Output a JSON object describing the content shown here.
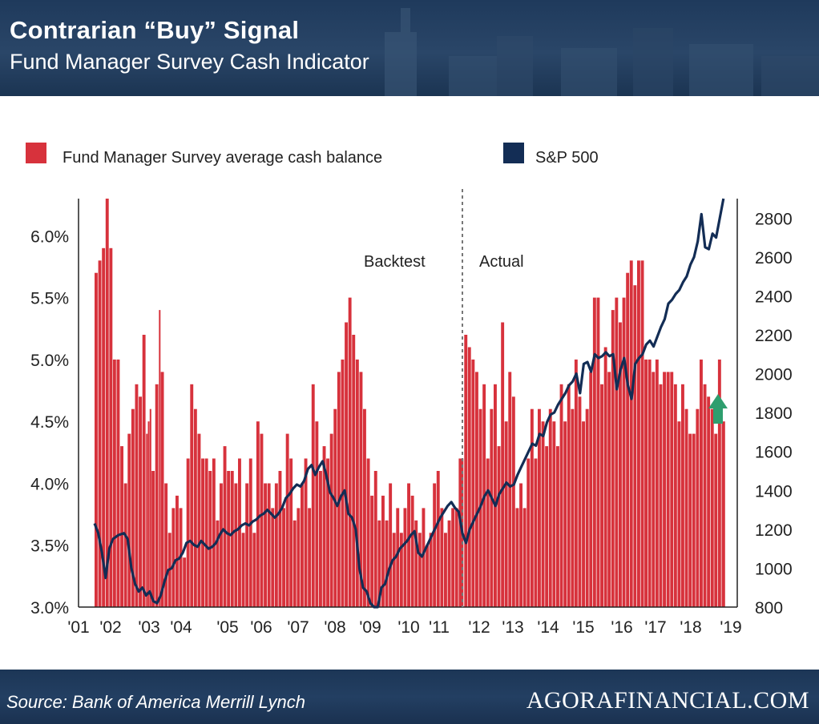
{
  "header": {
    "title": "Contrarian “Buy” Signal",
    "subtitle": "Fund Manager Survey Cash Indicator"
  },
  "footer": {
    "source": "Source: Bank of America Merrill Lynch",
    "brand": "AGORAFINANCIAL.COM"
  },
  "colors": {
    "bar": "#d7323c",
    "line": "#132d55",
    "arrow": "#2e9e6e",
    "header_bg": "#22405f"
  },
  "chart_data": {
    "type": "bar",
    "legend": [
      {
        "label": "Fund Manager Survey average cash balance",
        "color": "#d7323c"
      },
      {
        "label": "S&P 500",
        "color": "#132d55"
      }
    ],
    "annotations": [
      "Backtest",
      "Actual"
    ],
    "x_tick_labels": [
      "'01",
      "'02",
      "'03",
      "'04",
      "'05",
      "'06",
      "'07",
      "'08",
      "'09",
      "'10",
      "'11",
      "'12",
      "'13",
      "'14",
      "'15",
      "'16",
      "'17",
      "'18",
      "'19"
    ],
    "x_tick_years": [
      2001,
      2001.75,
      2002.9,
      2003.75,
      2004.9,
      2005.75,
      2006.7,
      2007.7,
      2008.75,
      2009.8,
      2010.5,
      2011.8,
      2012.75,
      2013.75,
      2014.5,
      2015.5,
      2016.4,
      2017.4,
      2018.6
    ],
    "x_range": [
      2001,
      2018.6
    ],
    "y_left": {
      "range": [
        3.0,
        6.3
      ],
      "ticks": [
        3.0,
        3.5,
        4.0,
        4.5,
        5.0,
        5.5,
        6.0
      ],
      "tick_labels": [
        "3.0%",
        "3.5%",
        "4.0%",
        "4.5%",
        "5.0%",
        "5.5%",
        "6.0%"
      ]
    },
    "y_right": {
      "range": [
        800,
        2900
      ],
      "ticks": [
        800,
        1000,
        1200,
        1400,
        1600,
        1800,
        2000,
        2200,
        2400,
        2600,
        2800
      ],
      "tick_labels": [
        "800",
        "1000",
        "1200",
        "1400",
        "1600",
        "1800",
        "2000",
        "2200",
        "2400",
        "2600",
        "2800"
      ]
    },
    "divider_year": 2011.5,
    "cash_balance": [
      [
        2001.5,
        5.7
      ],
      [
        2001.6,
        5.8
      ],
      [
        2001.7,
        5.9
      ],
      [
        2001.8,
        6.3
      ],
      [
        2001.9,
        5.9
      ],
      [
        2002.0,
        5.0
      ],
      [
        2002.1,
        5.0
      ],
      [
        2002.2,
        4.3
      ],
      [
        2002.3,
        4.0
      ],
      [
        2002.4,
        4.4
      ],
      [
        2002.5,
        4.6
      ],
      [
        2002.6,
        4.8
      ],
      [
        2002.7,
        4.7
      ],
      [
        2002.8,
        5.2
      ],
      [
        2002.9,
        4.4
      ],
      [
        2002.95,
        4.5
      ],
      [
        2003.0,
        4.6
      ],
      [
        2003.05,
        4.1
      ],
      [
        2003.15,
        4.8
      ],
      [
        2003.25,
        5.4
      ],
      [
        2003.3,
        4.9
      ],
      [
        2003.4,
        4.0
      ],
      [
        2003.5,
        3.6
      ],
      [
        2003.6,
        3.8
      ],
      [
        2003.7,
        3.9
      ],
      [
        2003.8,
        3.8
      ],
      [
        2003.9,
        3.4
      ],
      [
        2004.0,
        4.2
      ],
      [
        2004.1,
        4.8
      ],
      [
        2004.2,
        4.6
      ],
      [
        2004.3,
        4.4
      ],
      [
        2004.4,
        4.2
      ],
      [
        2004.5,
        4.2
      ],
      [
        2004.6,
        4.1
      ],
      [
        2004.7,
        4.2
      ],
      [
        2004.8,
        3.7
      ],
      [
        2004.9,
        4.0
      ],
      [
        2005.0,
        4.3
      ],
      [
        2005.1,
        4.1
      ],
      [
        2005.2,
        4.1
      ],
      [
        2005.3,
        4.0
      ],
      [
        2005.4,
        4.2
      ],
      [
        2005.5,
        3.6
      ],
      [
        2005.6,
        4.0
      ],
      [
        2005.7,
        4.2
      ],
      [
        2005.8,
        3.6
      ],
      [
        2005.9,
        4.5
      ],
      [
        2006.0,
        4.4
      ],
      [
        2006.1,
        4.0
      ],
      [
        2006.2,
        4.0
      ],
      [
        2006.3,
        3.8
      ],
      [
        2006.4,
        4.0
      ],
      [
        2006.5,
        4.1
      ],
      [
        2006.6,
        3.8
      ],
      [
        2006.7,
        4.4
      ],
      [
        2006.8,
        4.2
      ],
      [
        2006.9,
        3.7
      ],
      [
        2007.0,
        3.8
      ],
      [
        2007.1,
        4.0
      ],
      [
        2007.2,
        4.2
      ],
      [
        2007.3,
        3.8
      ],
      [
        2007.4,
        4.8
      ],
      [
        2007.5,
        4.5
      ],
      [
        2007.6,
        4.1
      ],
      [
        2007.7,
        4.3
      ],
      [
        2007.8,
        4.2
      ],
      [
        2007.9,
        4.4
      ],
      [
        2008.0,
        4.6
      ],
      [
        2008.1,
        4.9
      ],
      [
        2008.2,
        5.0
      ],
      [
        2008.3,
        5.3
      ],
      [
        2008.4,
        5.5
      ],
      [
        2008.5,
        5.2
      ],
      [
        2008.6,
        5.0
      ],
      [
        2008.7,
        4.9
      ],
      [
        2008.8,
        4.6
      ],
      [
        2008.9,
        4.2
      ],
      [
        2009.0,
        3.9
      ],
      [
        2009.1,
        4.1
      ],
      [
        2009.2,
        3.7
      ],
      [
        2009.3,
        3.9
      ],
      [
        2009.4,
        3.7
      ],
      [
        2009.5,
        4.0
      ],
      [
        2009.6,
        3.6
      ],
      [
        2009.7,
        3.8
      ],
      [
        2009.8,
        3.6
      ],
      [
        2009.9,
        3.8
      ],
      [
        2010.0,
        4.0
      ],
      [
        2010.1,
        3.9
      ],
      [
        2010.2,
        3.7
      ],
      [
        2010.3,
        3.6
      ],
      [
        2010.4,
        3.8
      ],
      [
        2010.5,
        3.5
      ],
      [
        2010.6,
        3.6
      ],
      [
        2010.7,
        4.0
      ],
      [
        2010.8,
        4.1
      ],
      [
        2010.9,
        3.8
      ],
      [
        2011.0,
        3.6
      ],
      [
        2011.1,
        3.7
      ],
      [
        2011.2,
        3.8
      ],
      [
        2011.3,
        3.8
      ],
      [
        2011.4,
        4.2
      ],
      [
        2011.55,
        5.2
      ],
      [
        2011.65,
        5.1
      ],
      [
        2011.75,
        5.0
      ],
      [
        2011.85,
        4.9
      ],
      [
        2011.95,
        4.6
      ],
      [
        2012.05,
        4.8
      ],
      [
        2012.15,
        4.2
      ],
      [
        2012.25,
        4.6
      ],
      [
        2012.35,
        4.8
      ],
      [
        2012.45,
        4.3
      ],
      [
        2012.55,
        5.3
      ],
      [
        2012.65,
        4.5
      ],
      [
        2012.75,
        4.9
      ],
      [
        2012.85,
        4.7
      ],
      [
        2012.95,
        3.8
      ],
      [
        2013.05,
        4.0
      ],
      [
        2013.15,
        3.8
      ],
      [
        2013.25,
        4.2
      ],
      [
        2013.35,
        4.6
      ],
      [
        2013.45,
        4.2
      ],
      [
        2013.55,
        4.6
      ],
      [
        2013.65,
        4.5
      ],
      [
        2013.75,
        4.3
      ],
      [
        2013.85,
        4.6
      ],
      [
        2013.95,
        4.5
      ],
      [
        2014.05,
        4.3
      ],
      [
        2014.15,
        4.8
      ],
      [
        2014.25,
        4.5
      ],
      [
        2014.35,
        4.8
      ],
      [
        2014.45,
        4.6
      ],
      [
        2014.55,
        5.0
      ],
      [
        2014.65,
        4.7
      ],
      [
        2014.75,
        4.5
      ],
      [
        2014.85,
        4.6
      ],
      [
        2014.95,
        4.9
      ],
      [
        2015.05,
        5.5
      ],
      [
        2015.15,
        5.5
      ],
      [
        2015.25,
        4.8
      ],
      [
        2015.35,
        5.1
      ],
      [
        2015.45,
        4.9
      ],
      [
        2015.55,
        5.4
      ],
      [
        2015.65,
        5.5
      ],
      [
        2015.75,
        5.3
      ],
      [
        2015.85,
        5.5
      ],
      [
        2015.95,
        5.7
      ],
      [
        2016.05,
        5.8
      ],
      [
        2016.15,
        5.6
      ],
      [
        2016.25,
        5.8
      ],
      [
        2016.35,
        5.8
      ],
      [
        2016.45,
        5.0
      ],
      [
        2016.55,
        5.0
      ],
      [
        2016.65,
        4.9
      ],
      [
        2016.75,
        5.0
      ],
      [
        2016.85,
        4.8
      ],
      [
        2016.95,
        4.9
      ],
      [
        2017.05,
        4.9
      ],
      [
        2017.15,
        4.9
      ],
      [
        2017.25,
        4.8
      ],
      [
        2017.35,
        4.5
      ],
      [
        2017.45,
        4.8
      ],
      [
        2017.55,
        4.6
      ],
      [
        2017.65,
        4.4
      ],
      [
        2017.75,
        4.4
      ],
      [
        2017.85,
        4.6
      ],
      [
        2017.95,
        5.0
      ],
      [
        2018.05,
        4.8
      ],
      [
        2018.15,
        4.7
      ],
      [
        2018.25,
        4.6
      ],
      [
        2018.35,
        4.4
      ],
      [
        2018.45,
        5.0
      ],
      [
        2018.55,
        4.5
      ]
    ],
    "sp500": [
      [
        2001.5,
        1230
      ],
      [
        2001.6,
        1180
      ],
      [
        2001.7,
        1080
      ],
      [
        2001.8,
        950
      ],
      [
        2001.9,
        1100
      ],
      [
        2002.0,
        1150
      ],
      [
        2002.15,
        1170
      ],
      [
        2002.3,
        1180
      ],
      [
        2002.4,
        1150
      ],
      [
        2002.5,
        1000
      ],
      [
        2002.6,
        920
      ],
      [
        2002.7,
        880
      ],
      [
        2002.8,
        900
      ],
      [
        2002.9,
        860
      ],
      [
        2003.0,
        880
      ],
      [
        2003.1,
        830
      ],
      [
        2003.2,
        820
      ],
      [
        2003.3,
        860
      ],
      [
        2003.4,
        930
      ],
      [
        2003.5,
        990
      ],
      [
        2003.6,
        1000
      ],
      [
        2003.7,
        1040
      ],
      [
        2003.8,
        1050
      ],
      [
        2003.9,
        1080
      ],
      [
        2004.0,
        1130
      ],
      [
        2004.1,
        1140
      ],
      [
        2004.2,
        1120
      ],
      [
        2004.3,
        1110
      ],
      [
        2004.4,
        1140
      ],
      [
        2004.5,
        1120
      ],
      [
        2004.6,
        1100
      ],
      [
        2004.7,
        1110
      ],
      [
        2004.8,
        1130
      ],
      [
        2004.9,
        1170
      ],
      [
        2005.0,
        1200
      ],
      [
        2005.1,
        1180
      ],
      [
        2005.2,
        1170
      ],
      [
        2005.3,
        1190
      ],
      [
        2005.4,
        1200
      ],
      [
        2005.5,
        1220
      ],
      [
        2005.6,
        1230
      ],
      [
        2005.7,
        1220
      ],
      [
        2005.8,
        1240
      ],
      [
        2005.9,
        1250
      ],
      [
        2006.0,
        1270
      ],
      [
        2006.1,
        1280
      ],
      [
        2006.2,
        1300
      ],
      [
        2006.3,
        1280
      ],
      [
        2006.4,
        1260
      ],
      [
        2006.5,
        1280
      ],
      [
        2006.6,
        1310
      ],
      [
        2006.7,
        1360
      ],
      [
        2006.8,
        1380
      ],
      [
        2006.9,
        1410
      ],
      [
        2007.0,
        1430
      ],
      [
        2007.1,
        1420
      ],
      [
        2007.2,
        1450
      ],
      [
        2007.3,
        1510
      ],
      [
        2007.4,
        1530
      ],
      [
        2007.5,
        1480
      ],
      [
        2007.6,
        1520
      ],
      [
        2007.7,
        1550
      ],
      [
        2007.8,
        1480
      ],
      [
        2007.9,
        1390
      ],
      [
        2008.0,
        1360
      ],
      [
        2008.1,
        1320
      ],
      [
        2008.2,
        1370
      ],
      [
        2008.3,
        1400
      ],
      [
        2008.4,
        1280
      ],
      [
        2008.5,
        1260
      ],
      [
        2008.6,
        1200
      ],
      [
        2008.7,
        1000
      ],
      [
        2008.8,
        900
      ],
      [
        2008.9,
        880
      ],
      [
        2009.0,
        820
      ],
      [
        2009.1,
        750
      ],
      [
        2009.2,
        800
      ],
      [
        2009.3,
        900
      ],
      [
        2009.4,
        920
      ],
      [
        2009.5,
        990
      ],
      [
        2009.6,
        1040
      ],
      [
        2009.7,
        1060
      ],
      [
        2009.8,
        1100
      ],
      [
        2009.9,
        1120
      ],
      [
        2010.0,
        1140
      ],
      [
        2010.1,
        1170
      ],
      [
        2010.2,
        1190
      ],
      [
        2010.3,
        1080
      ],
      [
        2010.4,
        1060
      ],
      [
        2010.5,
        1100
      ],
      [
        2010.6,
        1140
      ],
      [
        2010.7,
        1180
      ],
      [
        2010.8,
        1220
      ],
      [
        2010.9,
        1260
      ],
      [
        2011.0,
        1290
      ],
      [
        2011.1,
        1320
      ],
      [
        2011.2,
        1340
      ],
      [
        2011.3,
        1310
      ],
      [
        2011.4,
        1290
      ],
      [
        2011.5,
        1180
      ],
      [
        2011.6,
        1130
      ],
      [
        2011.7,
        1200
      ],
      [
        2011.8,
        1240
      ],
      [
        2011.9,
        1280
      ],
      [
        2012.0,
        1320
      ],
      [
        2012.1,
        1370
      ],
      [
        2012.2,
        1400
      ],
      [
        2012.3,
        1360
      ],
      [
        2012.4,
        1320
      ],
      [
        2012.5,
        1380
      ],
      [
        2012.6,
        1410
      ],
      [
        2012.7,
        1440
      ],
      [
        2012.8,
        1420
      ],
      [
        2012.9,
        1430
      ],
      [
        2013.0,
        1480
      ],
      [
        2013.1,
        1520
      ],
      [
        2013.2,
        1560
      ],
      [
        2013.3,
        1600
      ],
      [
        2013.4,
        1640
      ],
      [
        2013.5,
        1630
      ],
      [
        2013.6,
        1690
      ],
      [
        2013.7,
        1680
      ],
      [
        2013.8,
        1750
      ],
      [
        2013.9,
        1790
      ],
      [
        2014.0,
        1800
      ],
      [
        2014.1,
        1840
      ],
      [
        2014.2,
        1870
      ],
      [
        2014.3,
        1900
      ],
      [
        2014.4,
        1940
      ],
      [
        2014.5,
        1960
      ],
      [
        2014.6,
        2000
      ],
      [
        2014.7,
        1900
      ],
      [
        2014.8,
        2050
      ],
      [
        2014.9,
        2060
      ],
      [
        2015.0,
        2010
      ],
      [
        2015.1,
        2100
      ],
      [
        2015.2,
        2080
      ],
      [
        2015.3,
        2090
      ],
      [
        2015.4,
        2110
      ],
      [
        2015.5,
        2090
      ],
      [
        2015.6,
        2100
      ],
      [
        2015.7,
        1920
      ],
      [
        2015.8,
        2020
      ],
      [
        2015.9,
        2080
      ],
      [
        2016.0,
        1940
      ],
      [
        2016.1,
        1870
      ],
      [
        2016.2,
        2050
      ],
      [
        2016.3,
        2080
      ],
      [
        2016.4,
        2100
      ],
      [
        2016.5,
        2150
      ],
      [
        2016.6,
        2170
      ],
      [
        2016.7,
        2140
      ],
      [
        2016.8,
        2190
      ],
      [
        2016.9,
        2240
      ],
      [
        2017.0,
        2280
      ],
      [
        2017.1,
        2360
      ],
      [
        2017.2,
        2380
      ],
      [
        2017.3,
        2410
      ],
      [
        2017.4,
        2430
      ],
      [
        2017.5,
        2470
      ],
      [
        2017.6,
        2500
      ],
      [
        2017.7,
        2560
      ],
      [
        2017.8,
        2600
      ],
      [
        2017.9,
        2680
      ],
      [
        2018.0,
        2820
      ],
      [
        2018.1,
        2650
      ],
      [
        2018.2,
        2640
      ],
      [
        2018.3,
        2720
      ],
      [
        2018.4,
        2700
      ],
      [
        2018.5,
        2800
      ],
      [
        2018.6,
        2900
      ]
    ]
  }
}
